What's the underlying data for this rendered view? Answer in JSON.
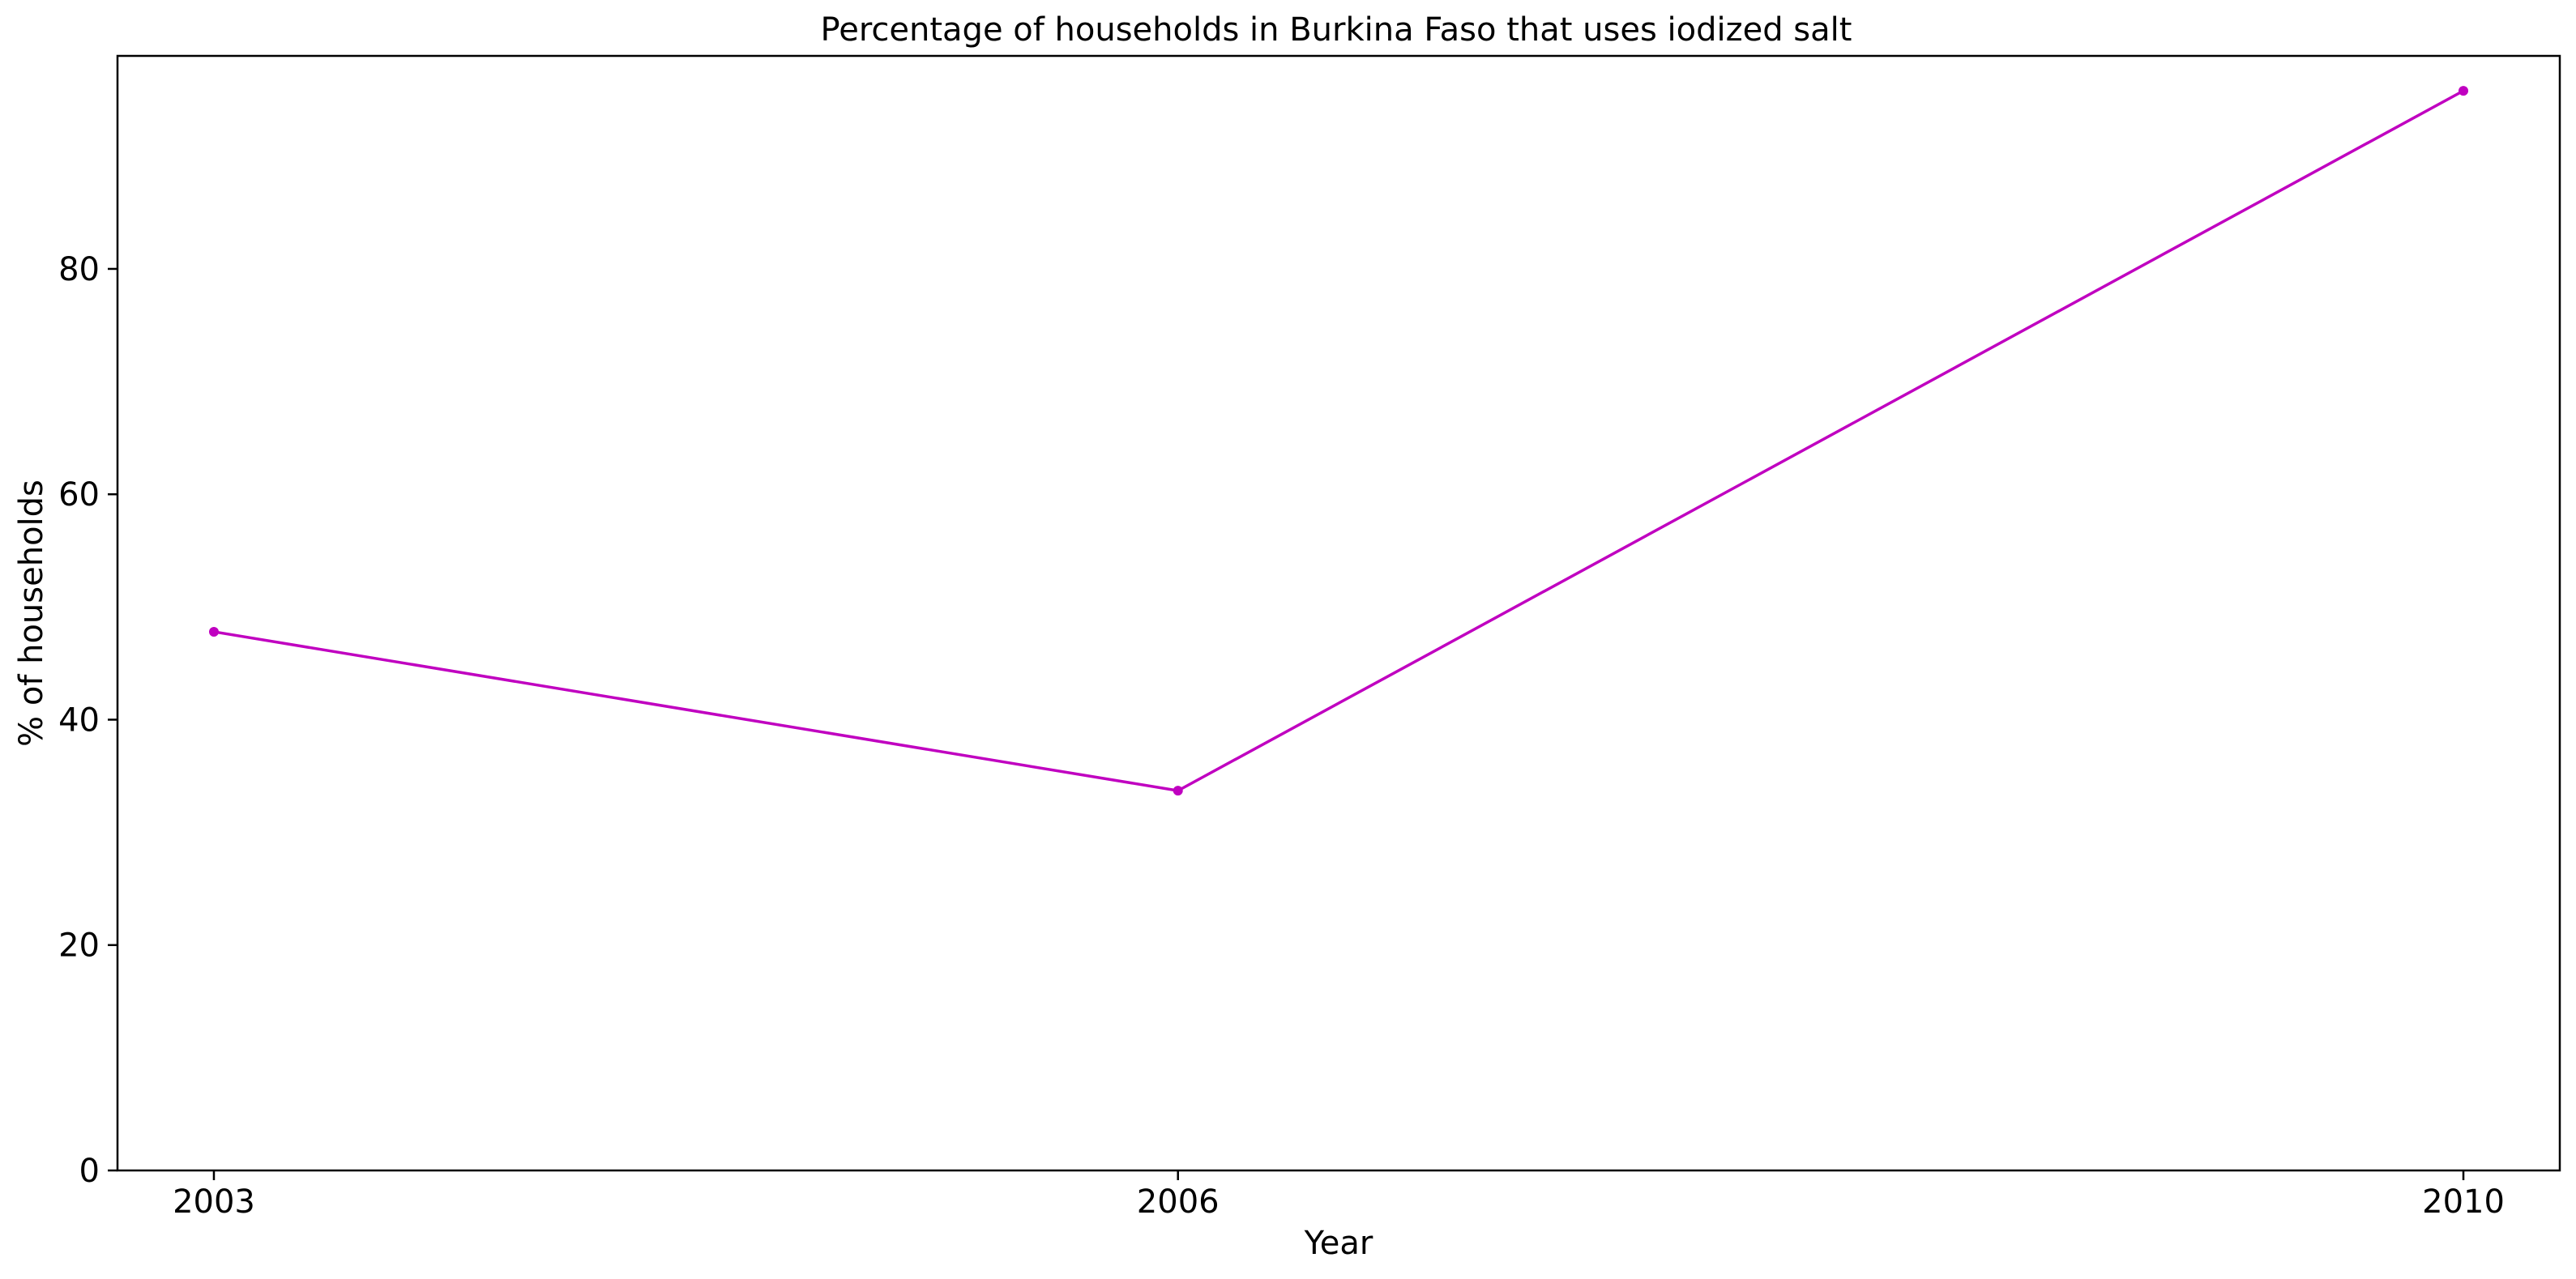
{
  "chart_data": {
    "type": "line",
    "title": "Percentage of households in Burkina Faso that uses iodized salt",
    "xlabel": "Year",
    "ylabel": "% of households",
    "x": [
      "2003",
      "2006",
      "2010"
    ],
    "series": [
      {
        "values": [
          47.8,
          33.7,
          95.8
        ],
        "color": "#c000c0"
      }
    ],
    "yticks": [
      "0",
      "20",
      "40",
      "60",
      "80"
    ],
    "ylim": [
      0,
      98.9
    ],
    "grid": false,
    "legend": "none"
  }
}
